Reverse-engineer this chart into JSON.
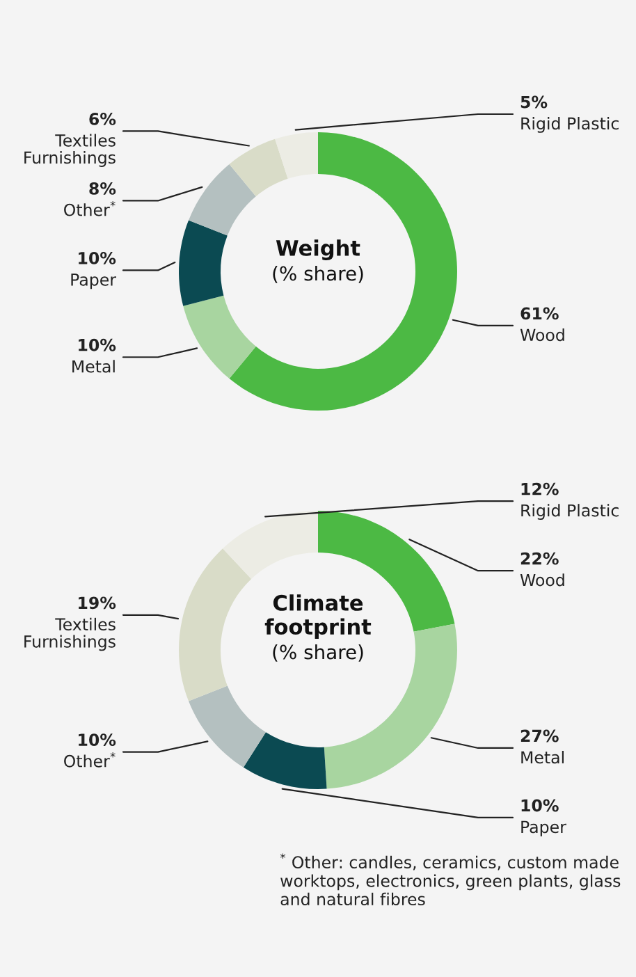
{
  "chart_data": [
    {
      "type": "donut",
      "title": "Weight",
      "subtitle": "(% share)",
      "categories": [
        "Wood",
        "Metal",
        "Paper",
        "Other$^{*}$",
        "Textiles Furnishings",
        "Rigid Plastic"
      ],
      "values": [
        61,
        10,
        10,
        8,
        6,
        5
      ],
      "colors": [
        "#4cb944",
        "#a8d5a0",
        "#0b4a52",
        "#b4c0c0",
        "#d9dcc8",
        "#ecece4"
      ],
      "value_labels": [
        "61%",
        "10%",
        "10%",
        "8%",
        "6%",
        "5%"
      ]
    },
    {
      "type": "donut",
      "title": "Climate footprint",
      "subtitle": "(% share)",
      "categories": [
        "Wood",
        "Metal",
        "Paper",
        "Other$^{*}$",
        "Textiles Furnishings",
        "Rigid Plastic"
      ],
      "values": [
        22,
        27,
        10,
        10,
        19,
        12
      ],
      "colors": [
        "#4cb944",
        "#a8d5a0",
        "#0b4a52",
        "#b4c0c0",
        "#d9dcc8",
        "#ecece4"
      ],
      "value_labels": [
        "22%",
        "27%",
        "10%",
        "10%",
        "19%",
        "12%"
      ],
      "annotations": [
        "$^{*}$ Other: candles, ceramics, custom made worktops, electronics, green plants, glass and natural fibres"
      ]
    }
  ]
}
